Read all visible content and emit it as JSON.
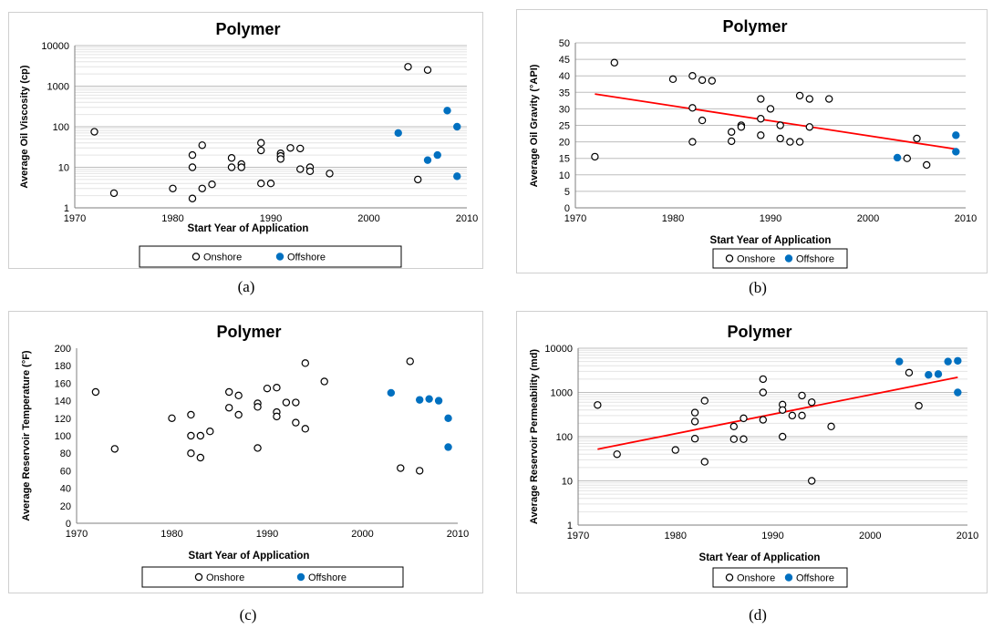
{
  "panel_labels": [
    "(a)",
    "(b)",
    "(c)",
    "(d)"
  ],
  "chart_data": [
    {
      "type": "scatter",
      "title": "Polymer",
      "xlabel": "Start Year of Application",
      "ylabel": "Average Oil Viscosity (cp)",
      "xlim": [
        1970,
        2010
      ],
      "ylim": [
        1,
        10000
      ],
      "y_scale": "log",
      "x_ticks": [
        "1970",
        "1980",
        "1990",
        "2000",
        "2010"
      ],
      "y_ticks": [
        "1",
        "10",
        "100",
        "1000",
        "10000"
      ],
      "grid": "horizontal",
      "legend": "bottom",
      "series": [
        {
          "name": "Onshore",
          "marker": "open-circle",
          "color": "#000000",
          "points": [
            [
              1972,
              75
            ],
            [
              1974,
              2.3
            ],
            [
              1980,
              3
            ],
            [
              1982,
              20
            ],
            [
              1982,
              10
            ],
            [
              1982,
              1.7
            ],
            [
              1983,
              35
            ],
            [
              1983,
              3
            ],
            [
              1984,
              3.8
            ],
            [
              1986,
              17
            ],
            [
              1986,
              10
            ],
            [
              1987,
              12
            ],
            [
              1987,
              10
            ],
            [
              1989,
              40
            ],
            [
              1989,
              26
            ],
            [
              1989,
              4
            ],
            [
              1990,
              4
            ],
            [
              1991,
              22
            ],
            [
              1991,
              19
            ],
            [
              1991,
              16
            ],
            [
              1992,
              30
            ],
            [
              1993,
              29
            ],
            [
              1993,
              9
            ],
            [
              1994,
              10
            ],
            [
              1994,
              8
            ],
            [
              1996,
              7
            ],
            [
              2004,
              3000
            ],
            [
              2005,
              5
            ],
            [
              2006,
              2500
            ]
          ]
        },
        {
          "name": "Offshore",
          "marker": "filled-circle",
          "color": "#0070c0",
          "points": [
            [
              2003,
              70
            ],
            [
              2006,
              15
            ],
            [
              2007,
              20
            ],
            [
              2008,
              250
            ],
            [
              2009,
              100
            ],
            [
              2009,
              6
            ]
          ]
        }
      ]
    },
    {
      "type": "scatter",
      "title": "Polymer",
      "xlabel": "Start Year of Application",
      "ylabel": "Average Oil Gravity (°API)",
      "xlim": [
        1970,
        2010
      ],
      "ylim": [
        0,
        50
      ],
      "y_scale": "linear",
      "x_ticks": [
        "1970",
        "1980",
        "1990",
        "2000",
        "2010"
      ],
      "y_ticks": [
        "0",
        "5",
        "10",
        "15",
        "20",
        "25",
        "30",
        "35",
        "40",
        "45",
        "50"
      ],
      "grid": "horizontal",
      "legend": "bottom",
      "trendline": {
        "color": "#ff0000",
        "from": [
          1972,
          34.5
        ],
        "to": [
          2009,
          17.8
        ]
      },
      "series": [
        {
          "name": "Onshore",
          "marker": "open-circle",
          "color": "#000000",
          "points": [
            [
              1972,
              15.5
            ],
            [
              1974,
              44
            ],
            [
              1980,
              39
            ],
            [
              1982,
              40
            ],
            [
              1982,
              30.3
            ],
            [
              1982,
              20
            ],
            [
              1983,
              38.7
            ],
            [
              1983,
              26.5
            ],
            [
              1984,
              38.5
            ],
            [
              1986,
              23
            ],
            [
              1986,
              20.2
            ],
            [
              1987,
              25
            ],
            [
              1987,
              24.5
            ],
            [
              1989,
              33
            ],
            [
              1989,
              27
            ],
            [
              1989,
              22
            ],
            [
              1990,
              30
            ],
            [
              1991,
              25
            ],
            [
              1991,
              21
            ],
            [
              1992,
              20
            ],
            [
              1993,
              34
            ],
            [
              1993,
              20
            ],
            [
              1994,
              33
            ],
            [
              1994,
              24.5
            ],
            [
              1996,
              33
            ],
            [
              2004,
              15
            ],
            [
              2005,
              21
            ],
            [
              2006,
              13
            ]
          ]
        },
        {
          "name": "Offshore",
          "marker": "filled-circle",
          "color": "#0070c0",
          "points": [
            [
              2003,
              15.2
            ],
            [
              2009,
              22
            ],
            [
              2009,
              17
            ]
          ]
        }
      ]
    },
    {
      "type": "scatter",
      "title": "Polymer",
      "xlabel": "Start Year of Application",
      "ylabel": "Average Reservoir Temperature (°F)",
      "xlim": [
        1970,
        2010
      ],
      "ylim": [
        0,
        200
      ],
      "y_scale": "linear",
      "x_ticks": [
        "1970",
        "1980",
        "1990",
        "2000",
        "2010"
      ],
      "y_ticks": [
        "0",
        "20",
        "40",
        "60",
        "80",
        "100",
        "120",
        "140",
        "160",
        "180",
        "200"
      ],
      "grid": "none",
      "legend": "bottom",
      "series": [
        {
          "name": "Onshore",
          "marker": "open-circle",
          "color": "#000000",
          "points": [
            [
              1972,
              150
            ],
            [
              1974,
              85
            ],
            [
              1980,
              120
            ],
            [
              1982,
              124
            ],
            [
              1982,
              100
            ],
            [
              1982,
              80
            ],
            [
              1983,
              100
            ],
            [
              1983,
              75
            ],
            [
              1984,
              105
            ],
            [
              1986,
              150
            ],
            [
              1986,
              132
            ],
            [
              1987,
              146
            ],
            [
              1987,
              124
            ],
            [
              1989,
              137
            ],
            [
              1989,
              133
            ],
            [
              1989,
              86
            ],
            [
              1990,
              154
            ],
            [
              1991,
              155
            ],
            [
              1991,
              127
            ],
            [
              1991,
              122
            ],
            [
              1992,
              138
            ],
            [
              1993,
              138
            ],
            [
              1993,
              115
            ],
            [
              1994,
              183
            ],
            [
              1994,
              108
            ],
            [
              1996,
              162
            ],
            [
              2004,
              63
            ],
            [
              2005,
              185
            ],
            [
              2006,
              60
            ]
          ]
        },
        {
          "name": "Offshore",
          "marker": "filled-circle",
          "color": "#0070c0",
          "points": [
            [
              2003,
              149
            ],
            [
              2006,
              141
            ],
            [
              2007,
              142
            ],
            [
              2008,
              140
            ],
            [
              2009,
              120
            ],
            [
              2009,
              87
            ]
          ]
        }
      ]
    },
    {
      "type": "scatter",
      "title": "Polymer",
      "xlabel": "Start Year of Application",
      "ylabel": "Average Reservoir Permeability (md)",
      "xlim": [
        1970,
        2010
      ],
      "ylim": [
        1,
        10000
      ],
      "y_scale": "log",
      "x_ticks": [
        "1970",
        "1980",
        "1990",
        "2000",
        "2010"
      ],
      "y_ticks": [
        "1",
        "10",
        "100",
        "1000",
        "10000"
      ],
      "grid": "horizontal",
      "legend": "bottom",
      "trendline": {
        "color": "#ff0000",
        "from": [
          1972,
          52
        ],
        "to": [
          2009,
          2200
        ]
      },
      "series": [
        {
          "name": "Onshore",
          "marker": "open-circle",
          "color": "#000000",
          "points": [
            [
              1972,
              520
            ],
            [
              1974,
              40
            ],
            [
              1980,
              50
            ],
            [
              1982,
              350
            ],
            [
              1982,
              220
            ],
            [
              1982,
              90
            ],
            [
              1983,
              650
            ],
            [
              1983,
              27
            ],
            [
              1986,
              170
            ],
            [
              1986,
              88
            ],
            [
              1987,
              260
            ],
            [
              1987,
              88
            ],
            [
              1989,
              2000
            ],
            [
              1989,
              1000
            ],
            [
              1989,
              240
            ],
            [
              1991,
              530
            ],
            [
              1991,
              400
            ],
            [
              1991,
              100
            ],
            [
              1992,
              300
            ],
            [
              1993,
              850
            ],
            [
              1993,
              300
            ],
            [
              1994,
              600
            ],
            [
              1994,
              10
            ],
            [
              1996,
              170
            ],
            [
              2004,
              2800
            ],
            [
              2005,
              500
            ]
          ]
        },
        {
          "name": "Offshore",
          "marker": "filled-circle",
          "color": "#0070c0",
          "points": [
            [
              2003,
              5000
            ],
            [
              2006,
              2500
            ],
            [
              2007,
              2600
            ],
            [
              2008,
              5000
            ],
            [
              2009,
              5200
            ],
            [
              2009,
              1000
            ]
          ]
        }
      ]
    }
  ]
}
